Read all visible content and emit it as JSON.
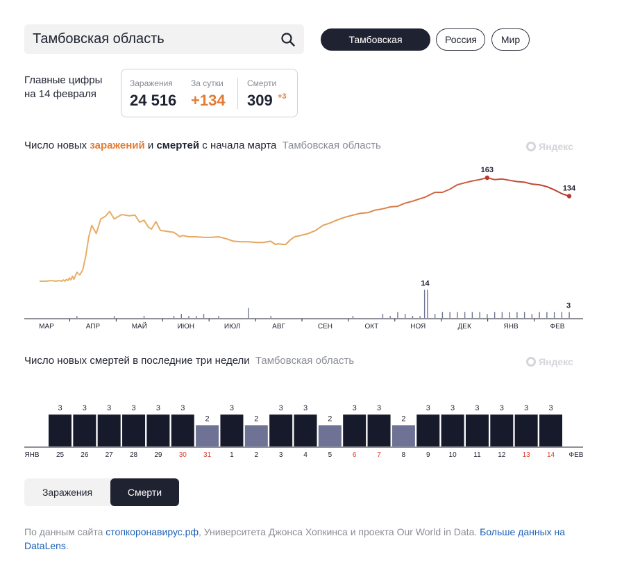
{
  "search": {
    "value": "Тамбовская область"
  },
  "regions": [
    {
      "label": "Тамбовская область",
      "active": true
    },
    {
      "label": "Россия",
      "active": false
    },
    {
      "label": "Мир",
      "active": false
    }
  ],
  "summary": {
    "title_line1": "Главные цифры",
    "title_line2": "на 14 февраля",
    "infections_label": "Заражения",
    "infections_value": "24 516",
    "daily_label": "За сутки",
    "daily_value": "+134",
    "deaths_label": "Смерти",
    "deaths_value": "309",
    "deaths_delta": "+3"
  },
  "chart1_title": {
    "part1": "Число новых ",
    "infections": "заражений",
    "part2": " и ",
    "deaths": "смертей",
    "part3": " с начала марта",
    "region": "Тамбовская область"
  },
  "chart2_title": {
    "text": "Число новых смертей в последние три недели",
    "region": "Тамбовская область"
  },
  "watermark": "Яндекс",
  "toggle": {
    "infections": "Заражения",
    "deaths": "Смерти",
    "active": "deaths"
  },
  "footer": {
    "t1": "По данным сайта ",
    "link1": "стопкоронавирус.рф",
    "t2": ", Университета Джонса Хопкинса и  проекта Our World in Data. ",
    "link2": "Больше данных на DataLens",
    "t3": "."
  },
  "colors": {
    "infections": "#e5a25a",
    "infections_late": "#b8392e",
    "deaths_bar": "#171a2a",
    "deaths_bar_light": "#6e7396",
    "weekend": "#d9412f"
  },
  "chart_data": [
    {
      "type": "line",
      "title": "Число новых заражений и смертей с начала марта",
      "x_labels": [
        "МАР",
        "АПР",
        "МАЙ",
        "ИЮН",
        "ИЮЛ",
        "АВГ",
        "СЕН",
        "ОКТ",
        "НОЯ",
        "ДЕК",
        "ЯНВ",
        "ФЕВ"
      ],
      "series": [
        {
          "name": "заражений",
          "x": [
            0,
            8,
            16,
            22,
            26,
            30,
            32,
            34,
            36,
            38,
            40,
            42,
            44,
            46,
            50,
            54,
            58,
            62,
            66,
            70,
            76,
            82,
            88,
            94,
            100,
            110,
            120,
            128,
            134,
            140,
            146,
            150,
            156,
            162,
            168,
            174,
            180,
            186,
            188,
            192,
            200,
            210,
            220,
            230,
            240,
            250,
            260,
            270,
            280,
            290,
            300,
            310,
            316,
            320,
            326,
            330,
            336,
            342,
            350,
            360,
            370,
            380,
            390,
            400,
            410,
            420,
            430,
            440,
            450,
            460,
            470,
            480,
            490,
            500,
            510,
            516,
            530,
            540,
            550,
            560,
            570,
            580,
            590,
            600,
            610,
            620,
            630,
            640,
            650,
            660,
            670,
            680,
            690,
            700,
            710
          ],
          "values": [
            0,
            0,
            1,
            0,
            1,
            0,
            2,
            0,
            3,
            1,
            5,
            2,
            8,
            3,
            14,
            10,
            18,
            40,
            70,
            88,
            75,
            98,
            102,
            110,
            98,
            105,
            103,
            104,
            93,
            96,
            85,
            82,
            94,
            80,
            79,
            78,
            77,
            72,
            70,
            72,
            70,
            70,
            69,
            69,
            70,
            67,
            63,
            62,
            62,
            61,
            61,
            63,
            58,
            59,
            58,
            58,
            65,
            70,
            72,
            75,
            80,
            88,
            92,
            97,
            101,
            104,
            107,
            108,
            112,
            114,
            117,
            118,
            123,
            126,
            130,
            132,
            140,
            140,
            145,
            152,
            155,
            158,
            160,
            163,
            160,
            161,
            159,
            157,
            156,
            153,
            152,
            149,
            144,
            138,
            134
          ]
        },
        {
          "name": "смертей",
          "x": [
            0,
            50,
            90,
            100,
            130,
            140,
            160,
            180,
            190,
            200,
            210,
            220,
            230,
            240,
            270,
            280,
            300,
            310,
            330,
            360,
            380,
            400,
            420,
            440,
            460,
            470,
            480,
            490,
            500,
            510,
            516,
            520,
            530,
            540,
            550,
            560,
            570,
            580,
            590,
            600,
            610,
            620,
            630,
            640,
            650,
            660,
            670,
            680,
            690,
            700,
            710
          ],
          "values": [
            0,
            1,
            0,
            1,
            0,
            1,
            0,
            1,
            2,
            1,
            1,
            2,
            0,
            1,
            0,
            5,
            0,
            1,
            0,
            0,
            0,
            0,
            1,
            0,
            2,
            1,
            3,
            2,
            1,
            1,
            14,
            14,
            2,
            3,
            3,
            3,
            3,
            3,
            3,
            2,
            3,
            3,
            3,
            3,
            3,
            2,
            3,
            3,
            3,
            3,
            3
          ]
        }
      ],
      "annotations": [
        {
          "label": "163"
        },
        {
          "label": "134"
        },
        {
          "label": "14"
        },
        {
          "label": "3"
        }
      ]
    },
    {
      "type": "bar",
      "title": "Число новых смертей в последние три недели",
      "start_label": "ЯНВ",
      "end_label": "ФЕВ",
      "categories": [
        "25",
        "26",
        "27",
        "28",
        "29",
        "30",
        "31",
        "1",
        "2",
        "3",
        "4",
        "5",
        "6",
        "7",
        "8",
        "9",
        "10",
        "11",
        "12",
        "13",
        "14"
      ],
      "values": [
        3,
        3,
        3,
        3,
        3,
        3,
        2,
        3,
        2,
        3,
        3,
        2,
        3,
        3,
        2,
        3,
        3,
        3,
        3,
        3,
        3
      ],
      "weekend": [
        false,
        false,
        false,
        false,
        false,
        true,
        true,
        false,
        false,
        false,
        false,
        false,
        true,
        true,
        false,
        false,
        false,
        false,
        false,
        true,
        true
      ],
      "ylim": [
        0,
        3
      ]
    }
  ]
}
